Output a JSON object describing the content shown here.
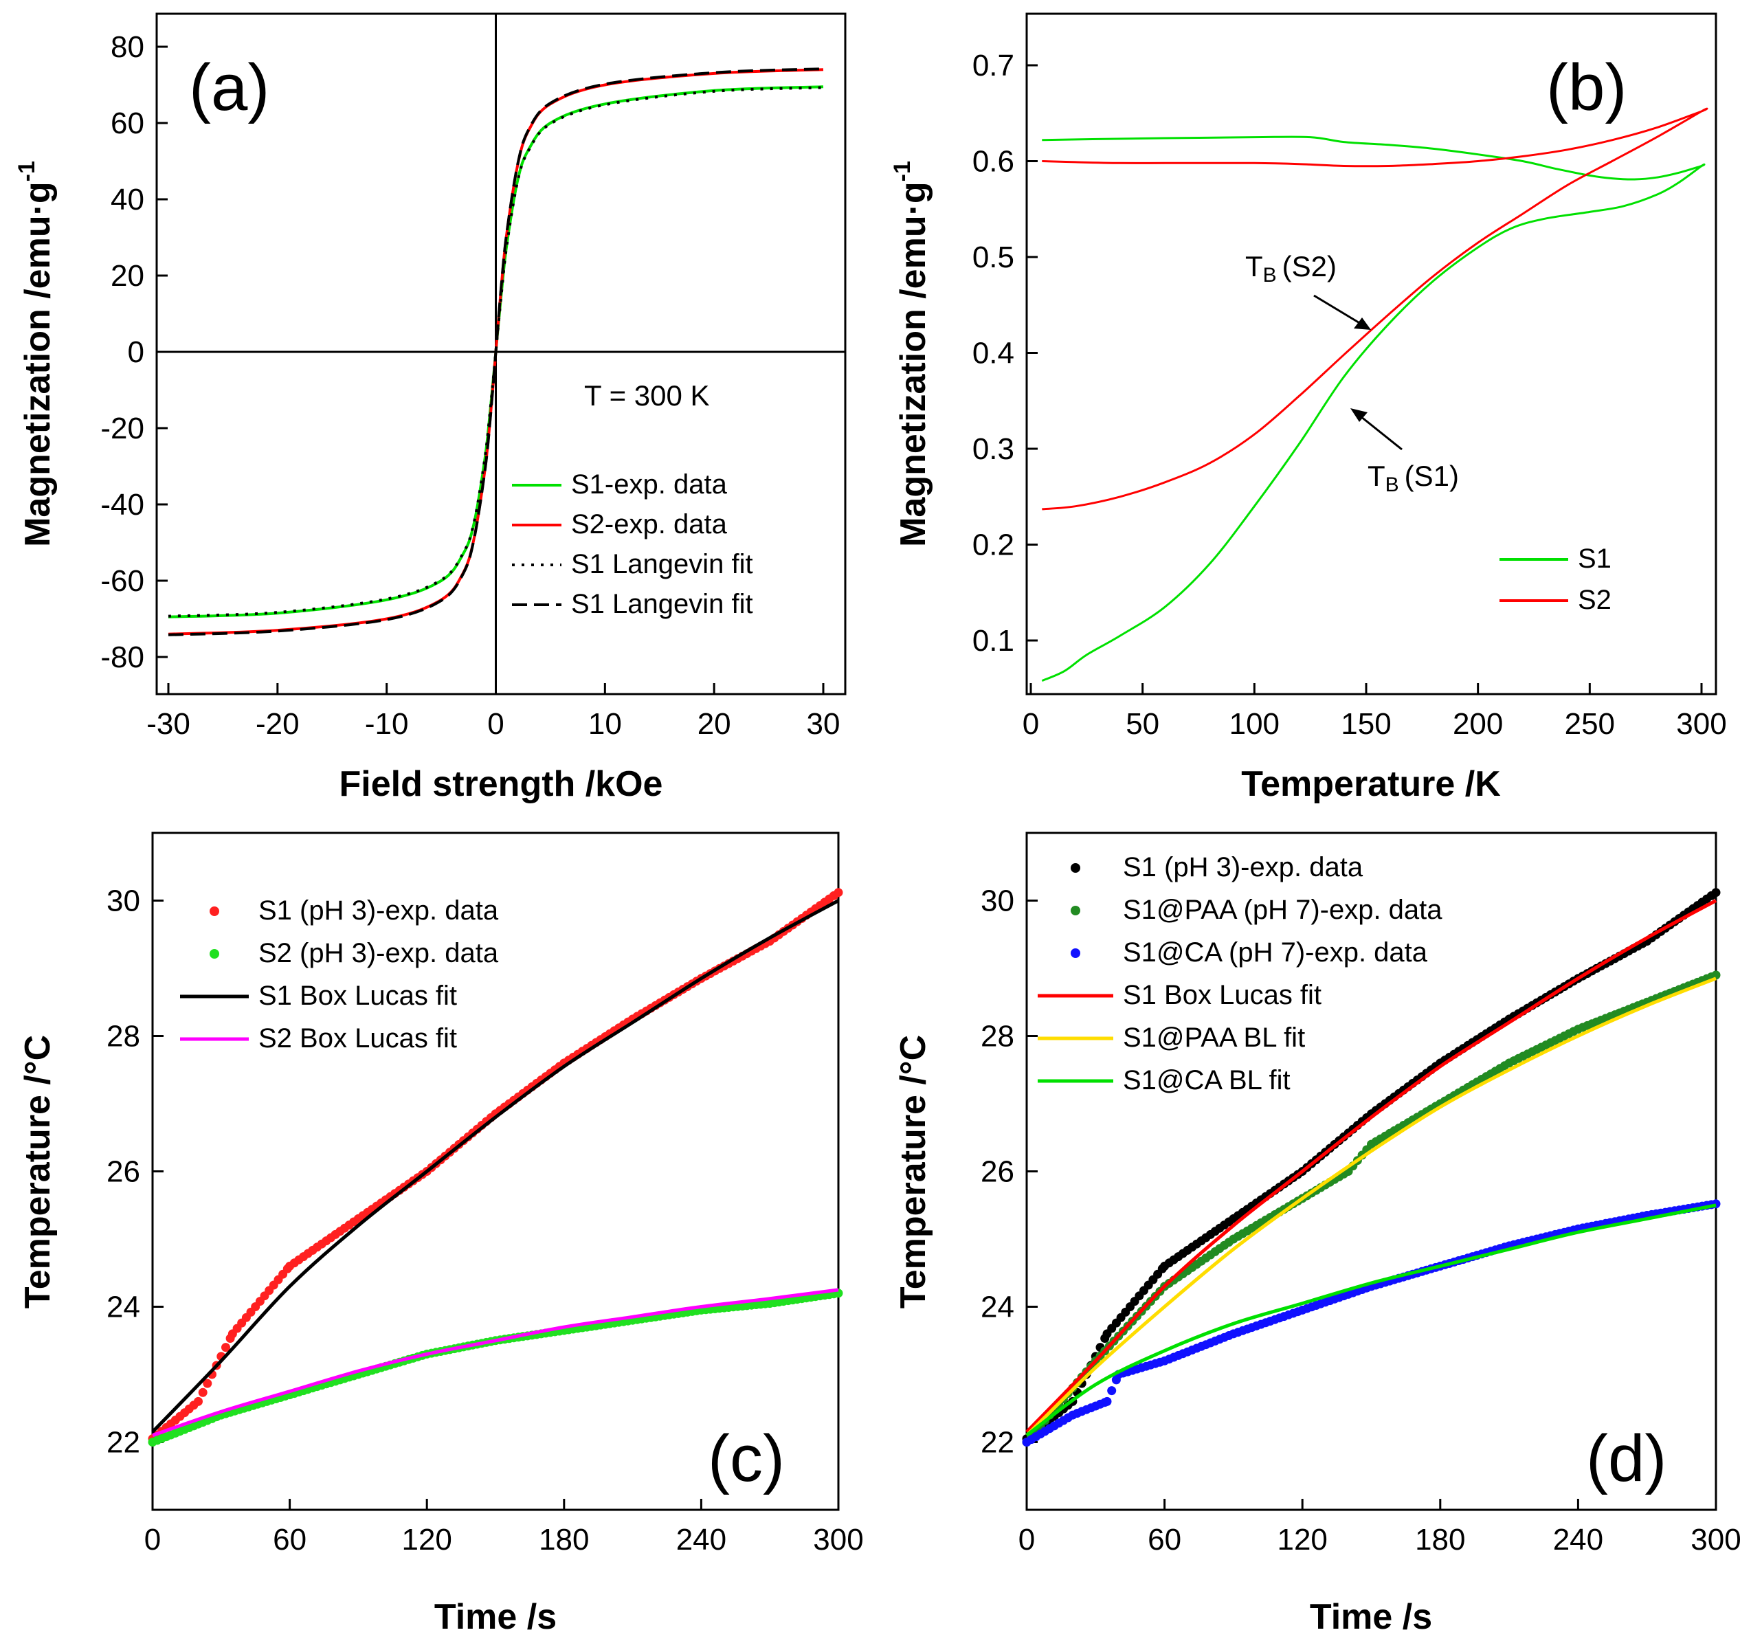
{
  "chart_data": [
    {
      "id": "a",
      "type": "line",
      "panel_label": "(a)",
      "xlabel": "Field strength /kOe",
      "ylabel": "Magnetization /emu·g",
      "ylabel_sup": "-1",
      "xlim": [
        -31,
        31
      ],
      "ylim": [
        -88,
        88
      ],
      "xticks": [
        -30,
        -20,
        -10,
        0,
        10,
        20,
        30
      ],
      "yticks": [
        -80,
        -60,
        -40,
        -20,
        0,
        20,
        40,
        60,
        80
      ],
      "annotation": "T = 300 K",
      "legend_position": "bottom-right",
      "series": [
        {
          "name": "S1-exp. data",
          "color": "#00e000",
          "style": "solid",
          "width": 4,
          "x": [
            -30,
            -20,
            -10,
            -5,
            -3,
            -2,
            -1,
            -0.5,
            0,
            0.5,
            1,
            2,
            3,
            5,
            10,
            20,
            30
          ],
          "y": [
            -69.5,
            -68.5,
            -65,
            -60,
            -53,
            -45,
            -28,
            -15,
            0,
            15,
            28,
            45,
            53,
            60,
            65,
            68.5,
            69.5
          ]
        },
        {
          "name": "S2-exp. data",
          "color": "#ff0000",
          "style": "solid",
          "width": 4,
          "x": [
            -30,
            -20,
            -10,
            -5,
            -3,
            -2,
            -1,
            -0.5,
            0,
            0.5,
            1,
            2,
            3,
            5,
            10,
            20,
            30
          ],
          "y": [
            -74,
            -73,
            -70,
            -65,
            -58,
            -49,
            -31,
            -17,
            0,
            17,
            31,
            49,
            58,
            65,
            70,
            73,
            74
          ]
        },
        {
          "name": "S1 Langevin fit",
          "color": "#000000",
          "style": "dotted",
          "width": 4,
          "x": [
            -30,
            -20,
            -10,
            -5,
            -3,
            -2,
            -1,
            -0.5,
            0,
            0.5,
            1,
            2,
            3,
            5,
            10,
            20,
            30
          ],
          "y": [
            -69.3,
            -68.3,
            -64.8,
            -59.8,
            -52.8,
            -44.8,
            -27.8,
            -14.8,
            0,
            14.8,
            27.8,
            44.8,
            52.8,
            59.8,
            64.8,
            68.3,
            69.3
          ]
        },
        {
          "name": "S1 Langevin fit",
          "color": "#000000",
          "style": "dashed",
          "width": 4,
          "x": [
            -30,
            -20,
            -10,
            -5,
            -3,
            -2,
            -1,
            -0.5,
            0,
            0.5,
            1,
            2,
            3,
            5,
            10,
            20,
            30
          ],
          "y": [
            -74.2,
            -73.2,
            -70.2,
            -65.2,
            -58.2,
            -49.2,
            -31.2,
            -17.2,
            0,
            17.2,
            31.2,
            49.2,
            58.2,
            65.2,
            70.2,
            73.2,
            74.2
          ]
        }
      ]
    },
    {
      "id": "b",
      "type": "line",
      "panel_label": "(b)",
      "xlabel": "Temperature /K",
      "ylabel": "Magnetization /emu·g",
      "ylabel_sup": "-1",
      "xlim": [
        0,
        305
      ],
      "ylim": [
        0.05,
        0.74
      ],
      "xticks": [
        0,
        50,
        100,
        150,
        200,
        250,
        300
      ],
      "yticks": [
        0.1,
        0.2,
        0.3,
        0.4,
        0.5,
        0.6,
        0.7
      ],
      "legend_position": "bottom-right",
      "annotations": [
        {
          "text": "T",
          "sub": "B",
          "suffix": "(S2)",
          "x": 165,
          "y": 0.43
        },
        {
          "text": "T",
          "sub": "B",
          "suffix": "(S1)",
          "x": 145,
          "y": 0.36
        }
      ],
      "series": [
        {
          "name": "S1",
          "color": "#00e000",
          "width": 3,
          "x": [
            5,
            15,
            25,
            40,
            60,
            80,
            100,
            120,
            140,
            160,
            180,
            200,
            215,
            230,
            250,
            265,
            280,
            290,
            300,
            300,
            290,
            280,
            270,
            260,
            250,
            235,
            220,
            200,
            180,
            160,
            140,
            125,
            100,
            60,
            30,
            5
          ],
          "y": [
            0.058,
            0.068,
            0.085,
            0.105,
            0.135,
            0.18,
            0.24,
            0.305,
            0.375,
            0.43,
            0.475,
            0.51,
            0.53,
            0.54,
            0.547,
            0.553,
            0.565,
            0.578,
            0.595,
            0.595,
            0.588,
            0.583,
            0.581,
            0.582,
            0.585,
            0.592,
            0.6,
            0.607,
            0.613,
            0.617,
            0.62,
            0.625,
            0.625,
            0.624,
            0.623,
            0.622
          ]
        },
        {
          "name": "S2",
          "color": "#ff0000",
          "width": 3,
          "x": [
            5,
            20,
            40,
            60,
            80,
            100,
            120,
            140,
            160,
            180,
            200,
            220,
            240,
            260,
            280,
            300,
            300,
            280,
            260,
            240,
            220,
            200,
            180,
            160,
            140,
            120,
            100,
            80,
            60,
            40,
            20,
            5
          ],
          "y": [
            0.237,
            0.24,
            0.25,
            0.265,
            0.285,
            0.315,
            0.355,
            0.398,
            0.44,
            0.48,
            0.515,
            0.545,
            0.575,
            0.6,
            0.625,
            0.652,
            0.652,
            0.635,
            0.622,
            0.612,
            0.605,
            0.6,
            0.597,
            0.595,
            0.595,
            0.597,
            0.598,
            0.598,
            0.598,
            0.598,
            0.599,
            0.6
          ]
        }
      ]
    },
    {
      "id": "c",
      "type": "scatter",
      "panel_label": "(c)",
      "xlabel": "Time /s",
      "ylabel": "Temperature /°C",
      "xlim": [
        0,
        300
      ],
      "ylim": [
        21,
        31
      ],
      "xticks": [
        0,
        60,
        120,
        180,
        240,
        300
      ],
      "yticks": [
        22,
        24,
        26,
        28,
        30
      ],
      "legend_position": "top-left",
      "series": [
        {
          "name": "S1 (pH 3)-exp. data",
          "kind": "points",
          "color": "#ff2020",
          "x": [
            0,
            20,
            35,
            60,
            90,
            120,
            150,
            180,
            210,
            240,
            270,
            300
          ],
          "y": [
            22.05,
            22.6,
            23.6,
            24.6,
            25.3,
            26.0,
            26.85,
            27.6,
            28.25,
            28.85,
            29.4,
            30.12
          ]
        },
        {
          "name": "S2 (pH 3)-exp. data",
          "kind": "points",
          "color": "#20e020",
          "x": [
            0,
            30,
            60,
            90,
            120,
            150,
            180,
            210,
            240,
            270,
            300
          ],
          "y": [
            22.0,
            22.4,
            22.7,
            23.0,
            23.3,
            23.5,
            23.65,
            23.8,
            23.95,
            24.05,
            24.2
          ]
        },
        {
          "name": "S1 Box Lucas fit",
          "kind": "line",
          "color": "#000000",
          "x": [
            0,
            30,
            60,
            90,
            120,
            150,
            180,
            210,
            240,
            270,
            300
          ],
          "y": [
            22.15,
            23.2,
            24.3,
            25.2,
            26.0,
            26.8,
            27.55,
            28.2,
            28.85,
            29.45,
            30.0
          ]
        },
        {
          "name": "S2 Box Lucas fit",
          "kind": "line",
          "color": "#ff00ff",
          "x": [
            0,
            30,
            60,
            90,
            120,
            150,
            180,
            210,
            240,
            270,
            300
          ],
          "y": [
            22.1,
            22.45,
            22.75,
            23.05,
            23.3,
            23.5,
            23.7,
            23.85,
            24.0,
            24.12,
            24.25
          ]
        }
      ]
    },
    {
      "id": "d",
      "type": "scatter",
      "panel_label": "(d)",
      "xlabel": "Time /s",
      "ylabel": "Temperature /°C",
      "xlim": [
        0,
        300
      ],
      "ylim": [
        21,
        31
      ],
      "xticks": [
        0,
        60,
        120,
        180,
        240,
        300
      ],
      "yticks": [
        22,
        24,
        26,
        28,
        30
      ],
      "legend_position": "top-left",
      "series": [
        {
          "name": "S1 (pH 3)-exp. data",
          "kind": "points",
          "color": "#000000",
          "x": [
            0,
            20,
            35,
            60,
            90,
            120,
            150,
            180,
            210,
            240,
            270,
            300
          ],
          "y": [
            22.05,
            22.6,
            23.6,
            24.6,
            25.3,
            26.0,
            26.85,
            27.6,
            28.25,
            28.85,
            29.4,
            30.12
          ]
        },
        {
          "name": "S1@PAA (pH 7)-exp. data",
          "kind": "points",
          "color": "#228b22",
          "x": [
            0,
            30,
            60,
            90,
            120,
            140,
            150,
            180,
            210,
            240,
            270,
            300
          ],
          "y": [
            22.0,
            23.2,
            24.3,
            25.0,
            25.6,
            26.0,
            26.4,
            27.0,
            27.6,
            28.1,
            28.5,
            28.9
          ]
        },
        {
          "name": "S1@CA (pH 7)-exp. data",
          "kind": "points",
          "color": "#1010ff",
          "x": [
            0,
            20,
            35,
            40,
            60,
            90,
            120,
            150,
            180,
            210,
            240,
            270,
            300
          ],
          "y": [
            22.0,
            22.4,
            22.6,
            23.0,
            23.2,
            23.6,
            23.95,
            24.3,
            24.6,
            24.9,
            25.15,
            25.35,
            25.52
          ]
        },
        {
          "name": "S1 Box Lucas fit",
          "kind": "line",
          "color": "#ff0000",
          "x": [
            0,
            30,
            60,
            90,
            120,
            150,
            180,
            210,
            240,
            270,
            300
          ],
          "y": [
            22.15,
            23.2,
            24.3,
            25.2,
            26.0,
            26.8,
            27.55,
            28.2,
            28.85,
            29.45,
            30.0
          ]
        },
        {
          "name": "S1@PAA BL fit",
          "kind": "line",
          "color": "#ffdd00",
          "x": [
            0,
            30,
            60,
            90,
            120,
            150,
            180,
            210,
            240,
            270,
            300
          ],
          "y": [
            22.1,
            23.1,
            24.0,
            24.85,
            25.6,
            26.3,
            26.95,
            27.5,
            28.0,
            28.45,
            28.85
          ]
        },
        {
          "name": "S1@CA BL fit",
          "kind": "line",
          "color": "#00e000",
          "x": [
            0,
            30,
            60,
            90,
            120,
            150,
            180,
            210,
            240,
            270,
            300
          ],
          "y": [
            22.1,
            22.85,
            23.35,
            23.75,
            24.05,
            24.35,
            24.6,
            24.85,
            25.1,
            25.3,
            25.5
          ]
        }
      ]
    }
  ]
}
